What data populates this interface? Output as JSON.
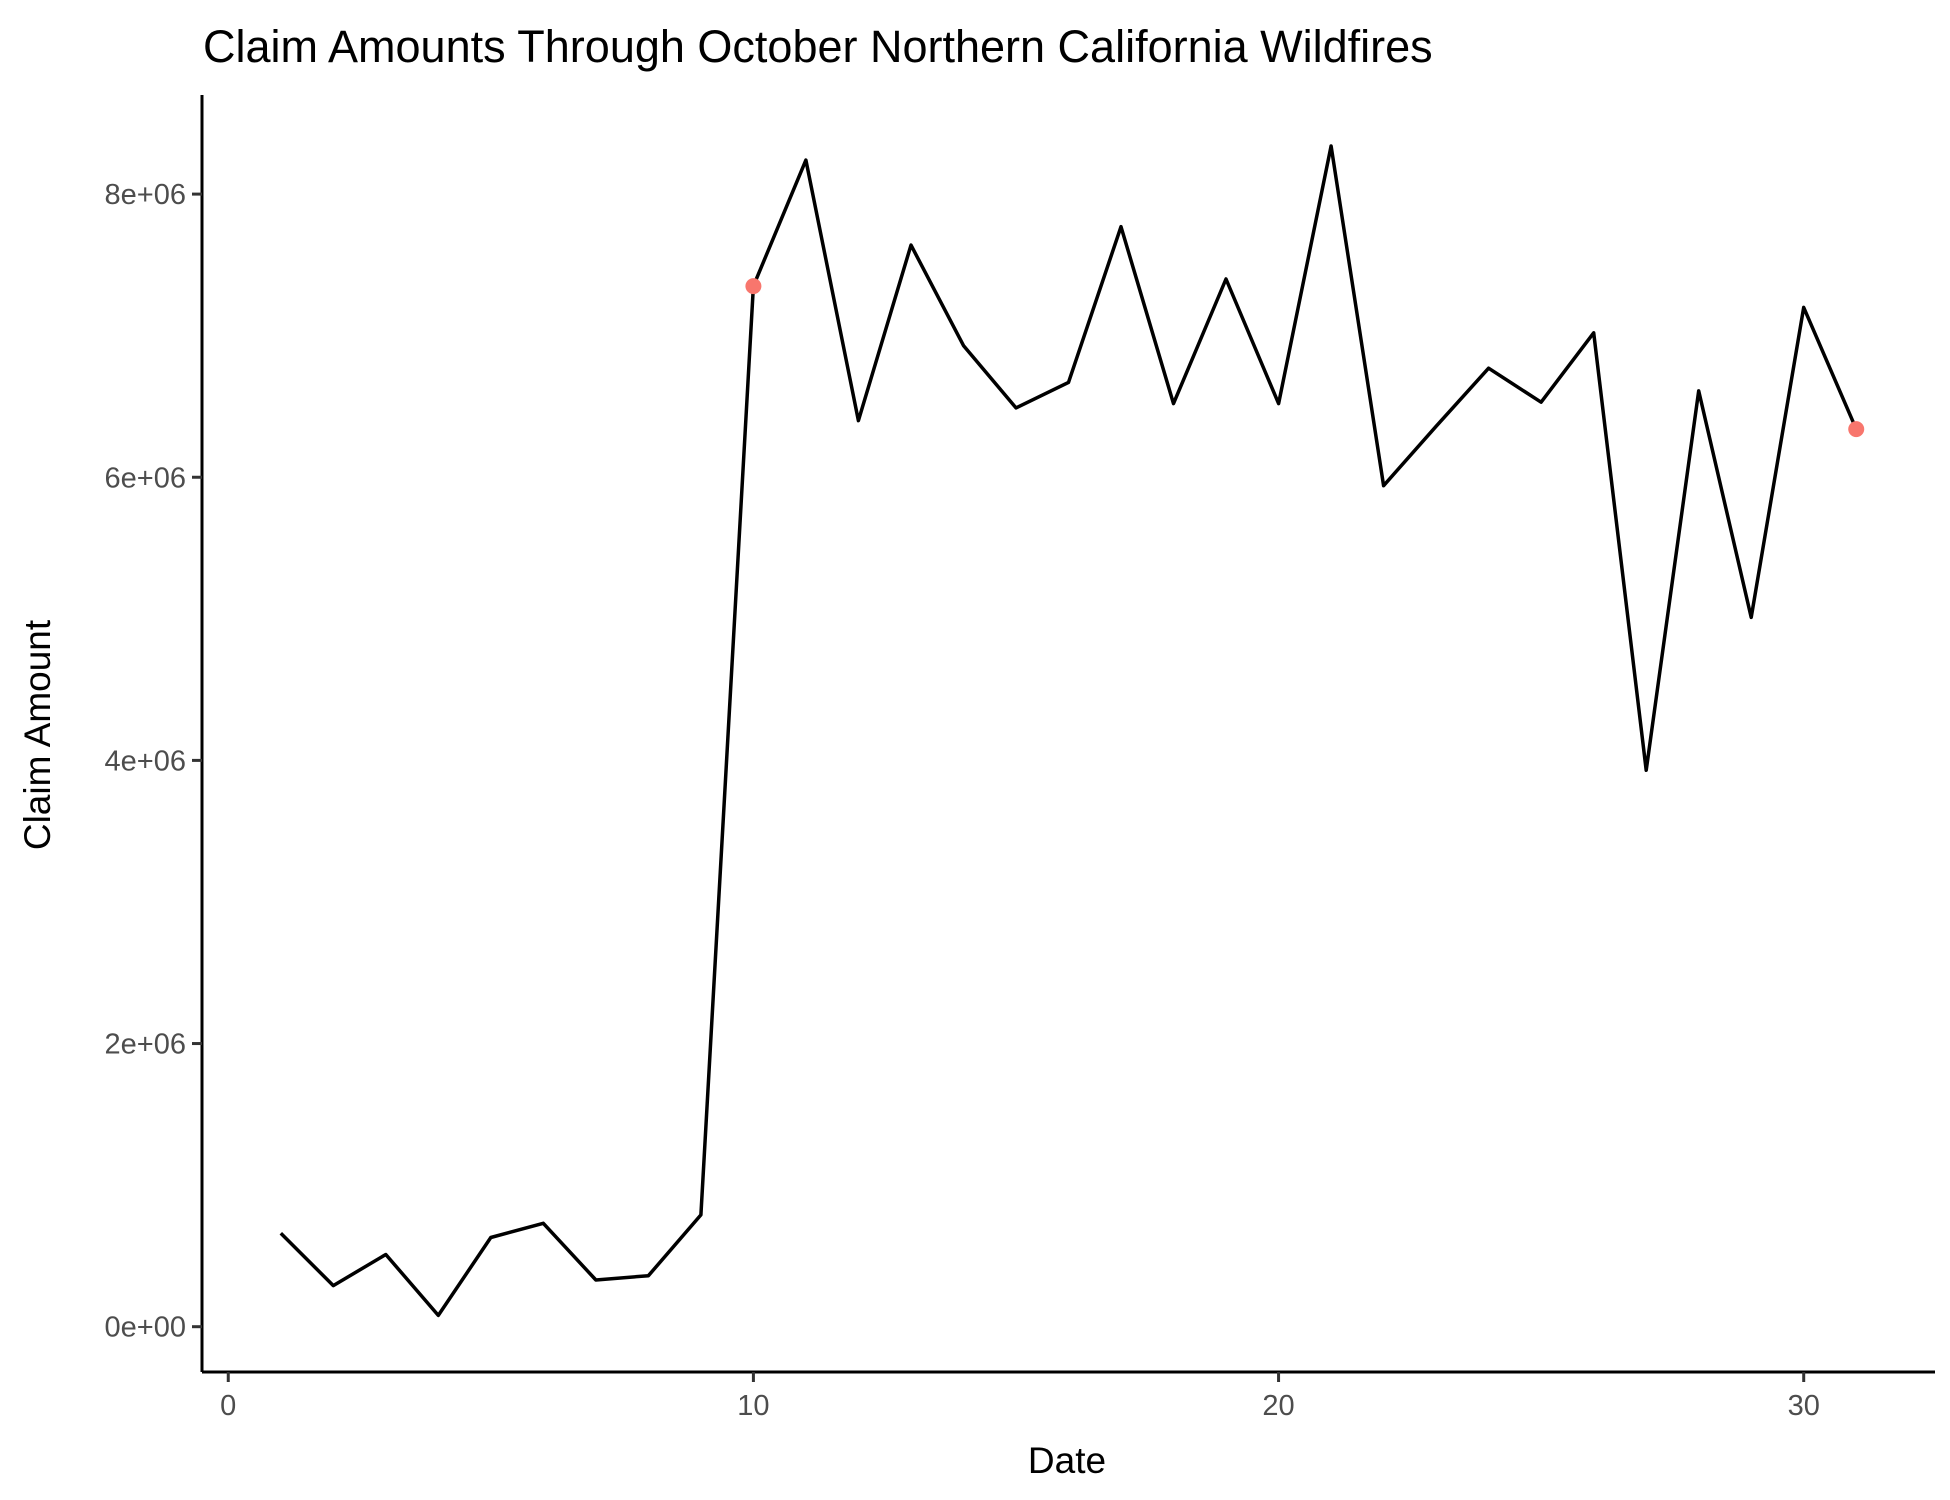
{
  "chart_data": {
    "type": "line",
    "title": "Claim Amounts Through October Northern California Wildfires",
    "xlabel": "Date",
    "ylabel": "Claim Amount",
    "xlim": [
      -0.5,
      32.5
    ],
    "ylim": [
      -320000,
      8700000
    ],
    "x_ticks": [
      {
        "value": 0,
        "label": "0"
      },
      {
        "value": 10,
        "label": "10"
      },
      {
        "value": 20,
        "label": "20"
      },
      {
        "value": 30,
        "label": "30"
      }
    ],
    "y_ticks": [
      {
        "value": 0,
        "label": "0e+00"
      },
      {
        "value": 2000000,
        "label": "2e+06"
      },
      {
        "value": 4000000,
        "label": "4e+06"
      },
      {
        "value": 6000000,
        "label": "6e+06"
      },
      {
        "value": 8000000,
        "label": "8e+06"
      }
    ],
    "grid": false,
    "legend": "none",
    "series": [
      {
        "color": "#000000",
        "x": [
          1,
          2,
          3,
          4,
          5,
          6,
          7,
          8,
          9,
          10,
          11,
          12,
          13,
          14,
          15,
          16,
          17,
          18,
          19,
          20,
          21,
          22,
          23,
          24,
          25,
          26,
          27,
          28,
          29,
          30,
          31
        ],
        "y": [
          660000,
          290000,
          510000,
          80000,
          630000,
          730000,
          330000,
          360000,
          790000,
          7350000,
          8240000,
          6400000,
          7640000,
          6930000,
          6490000,
          6670000,
          7770000,
          6520000,
          7400000,
          6520000,
          8340000,
          5940000,
          6360000,
          6770000,
          6530000,
          7020000,
          3930000,
          6610000,
          5010000,
          7200000,
          6340000
        ]
      }
    ],
    "highlight_points": {
      "color": "#f8766d",
      "points": [
        {
          "x": 10,
          "y": 7350000
        },
        {
          "x": 31,
          "y": 6340000
        }
      ]
    }
  }
}
